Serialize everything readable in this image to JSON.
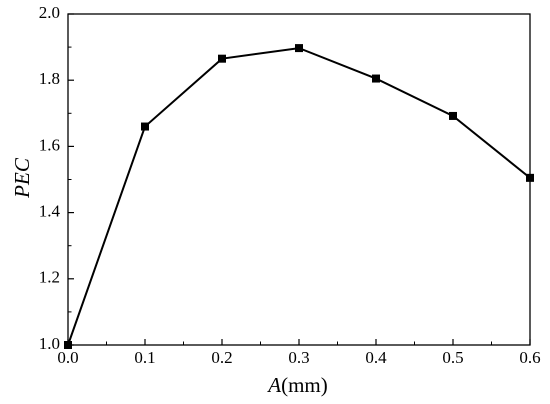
{
  "chart_data": {
    "type": "line",
    "title": "",
    "xlabel": {
      "var": "A",
      "unit": "(mm)"
    },
    "ylabel": "PEC",
    "xlim": [
      0.0,
      0.6
    ],
    "ylim": [
      1.0,
      2.0
    ],
    "x_ticks": [
      "0.0",
      "0.1",
      "0.2",
      "0.3",
      "0.4",
      "0.5",
      "0.6"
    ],
    "y_ticks": [
      "1.0",
      "1.2",
      "1.4",
      "1.6",
      "1.8",
      "2.0"
    ],
    "grid": false,
    "series": [
      {
        "marker": "square",
        "color": "#000000",
        "x": [
          0.0,
          0.1,
          0.2,
          0.3,
          0.4,
          0.5,
          0.6
        ],
        "y": [
          1.0,
          1.66,
          1.865,
          1.897,
          1.805,
          1.692,
          1.505
        ]
      }
    ]
  }
}
